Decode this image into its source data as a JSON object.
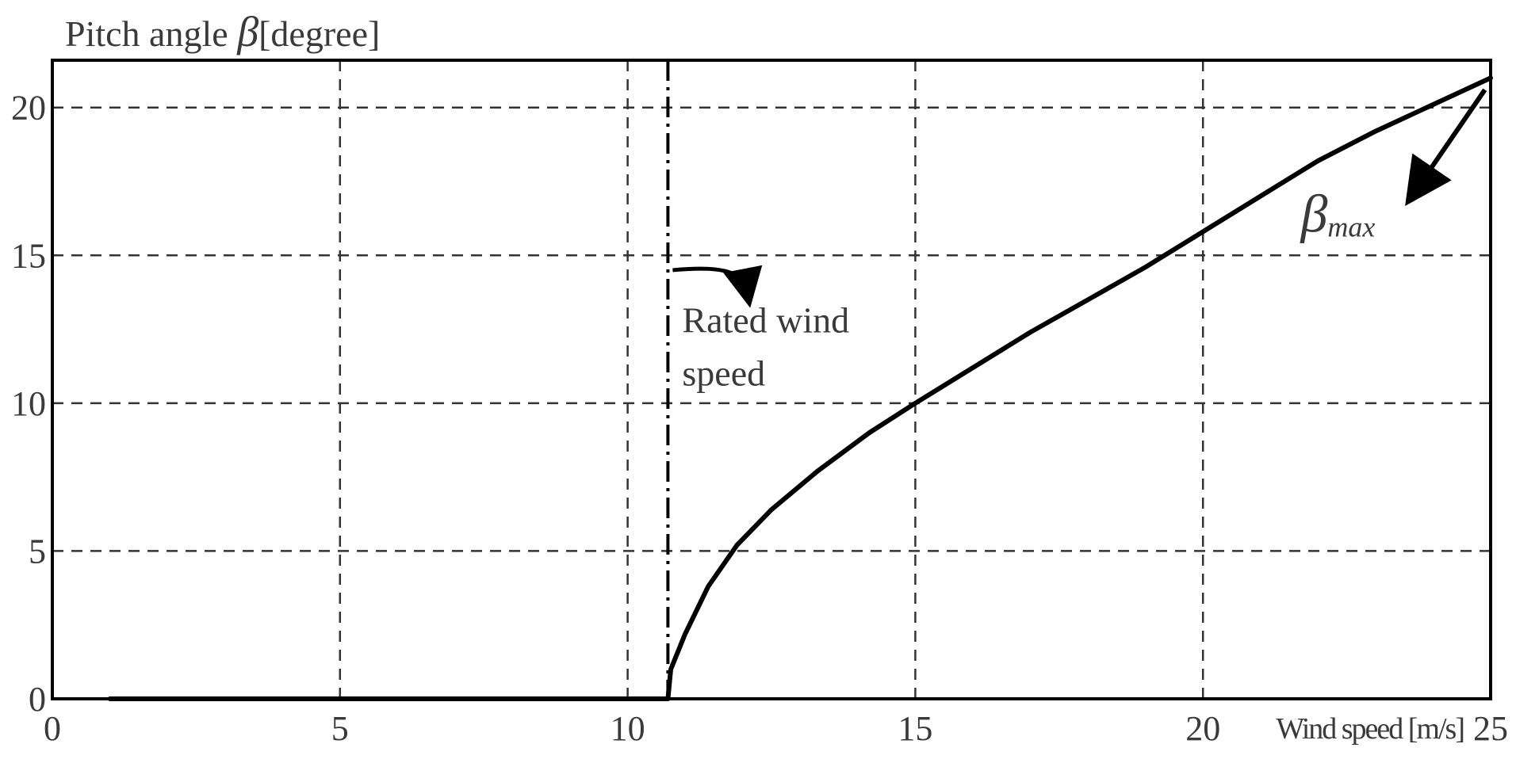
{
  "chart_data": {
    "type": "line",
    "ylabel": "Pitch angle",
    "ysymbol": "β",
    "yunit": "[degree]",
    "xlabel": "Wind speed [m/s]",
    "xlim": [
      0,
      25
    ],
    "ylim": [
      0,
      21.6
    ],
    "xticks": [
      0,
      5,
      10,
      15,
      20,
      25
    ],
    "yticks": [
      0,
      5,
      10,
      15,
      20
    ],
    "grid": true,
    "rated_wind_speed": 10.7,
    "series": [
      {
        "x": [
          1,
          10.7,
          10.75,
          11.0,
          11.4,
          11.9,
          12.5,
          13.3,
          14.2,
          15.0,
          16.0,
          17.0,
          18.0,
          19.0,
          20.0,
          21.0,
          22.0,
          23.0,
          24.0,
          25.0
        ],
        "y": [
          0,
          0,
          1.0,
          2.2,
          3.8,
          5.2,
          6.4,
          7.7,
          9.0,
          10.0,
          11.2,
          12.4,
          13.5,
          14.6,
          15.8,
          17.0,
          18.2,
          19.2,
          20.1,
          21.0
        ]
      }
    ],
    "annotations": {
      "rated_line1": "Rated wind",
      "rated_line2": "speed",
      "beta_max_symbol": "β",
      "beta_max_sub": "max"
    }
  }
}
